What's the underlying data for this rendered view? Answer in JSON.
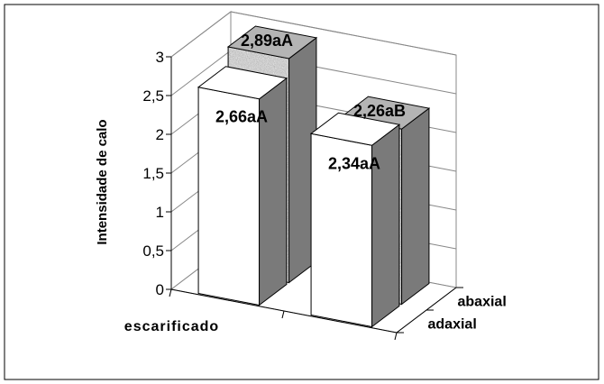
{
  "chart_data": {
    "type": "bar",
    "title": "",
    "xlabel": "",
    "ylabel": "Intensidade de calo",
    "ylim": [
      0,
      3
    ],
    "yticks": [
      "0",
      "0,5",
      "1",
      "1,5",
      "2",
      "2,5",
      "3"
    ],
    "grid": true,
    "categories": [
      "escarificado",
      ""
    ],
    "depth_categories": [
      "adaxial",
      "abaxial"
    ],
    "series": [
      {
        "name": "adaxial",
        "values": [
          2.66,
          2.34
        ],
        "labels": [
          "2,66aA",
          "2,34aA"
        ],
        "color": "#ffffff"
      },
      {
        "name": "abaxial",
        "values": [
          2.89,
          2.26
        ],
        "labels": [
          "2,89aA",
          "2,26aB"
        ],
        "color": "#c8c8c8"
      }
    ]
  }
}
